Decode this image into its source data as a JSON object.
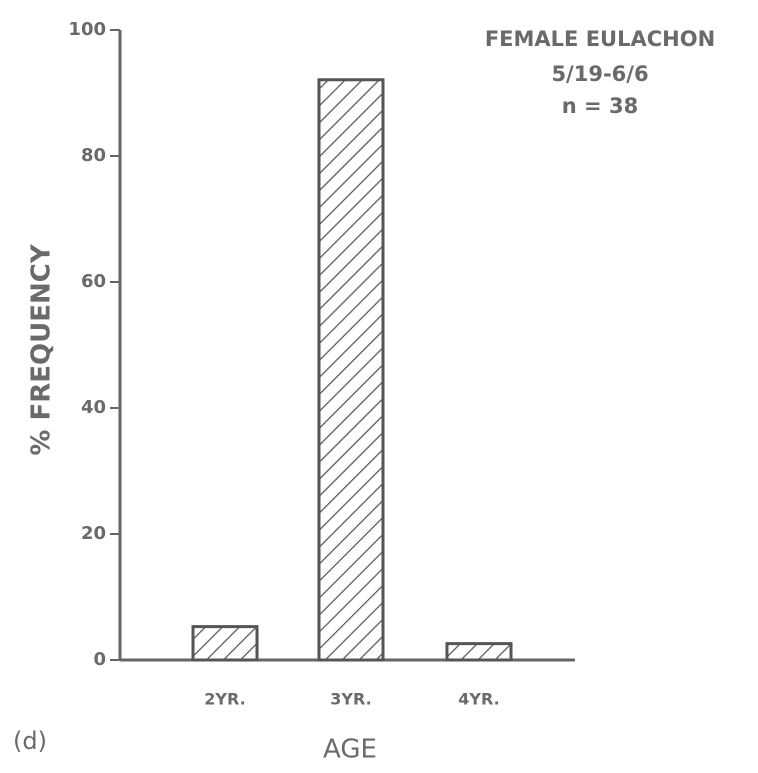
{
  "chart_data": {
    "type": "bar",
    "title": "FEMALE EULACHON",
    "subtitle": "5/19-6/6",
    "annotation": "n = 38",
    "panel_label": "(d)",
    "xlabel": "AGE",
    "ylabel": "% FREQUENCY",
    "categories": [
      "2YR.",
      "3YR.",
      "4YR."
    ],
    "values": [
      5.3,
      92.1,
      2.6
    ],
    "color": "#555555",
    "ylim": [
      0,
      100
    ],
    "yticks": [
      0,
      20,
      40,
      60,
      80,
      100
    ],
    "hatch": true
  }
}
